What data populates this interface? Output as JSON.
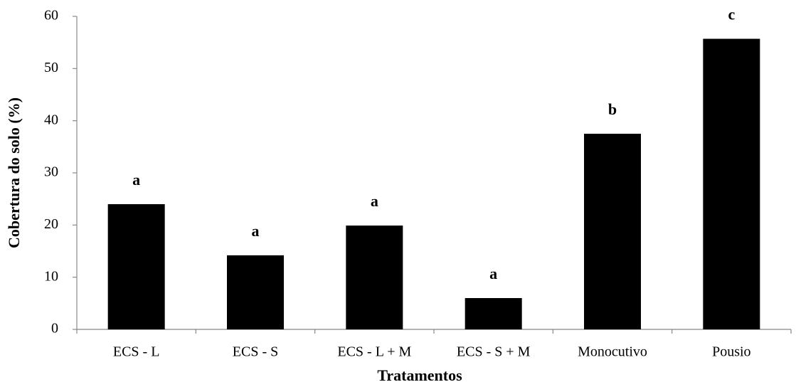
{
  "chart_data": {
    "type": "bar",
    "x_label": "Tratamentos",
    "y_label": "Cobertura do solo (%)",
    "categories": [
      "ECS - L",
      "ECS - S",
      "ECS - L + M",
      "ECS - S + M",
      "Monocutivo",
      "Pousio"
    ],
    "values": [
      24,
      14.2,
      19.9,
      6,
      37.5,
      55.7
    ],
    "annotations": [
      "a",
      "a",
      "a",
      "a",
      "b",
      "c"
    ],
    "color": "#000000",
    "ylim": [
      0,
      60
    ],
    "yticks": [
      0,
      10,
      20,
      30,
      40,
      50,
      60
    ],
    "grid": false
  }
}
